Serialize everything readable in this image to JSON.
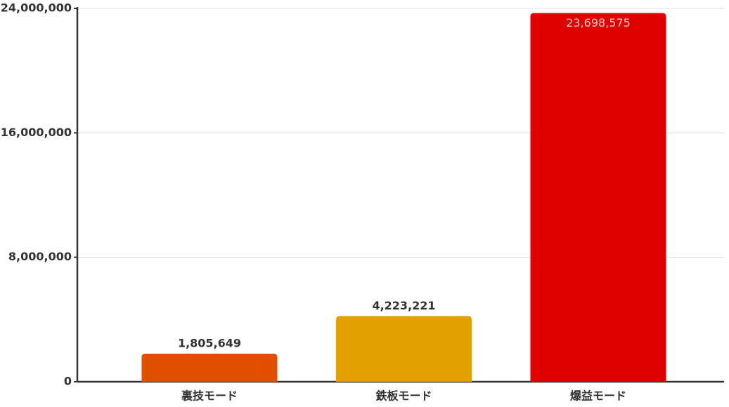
{
  "chart_data": {
    "type": "bar",
    "categories": [
      "裏技モード",
      "鉄板モード",
      "爆益モード"
    ],
    "values": [
      1805649,
      4223221,
      23698575
    ],
    "value_labels": [
      "1,805,649",
      "4,223,221",
      "23,698,575"
    ],
    "colors": [
      "#e04e00",
      "#e0a000",
      "#e00000"
    ],
    "ylim": [
      0,
      24000000
    ],
    "yticks": [
      0,
      {
        "value": 8000000,
        "label": "8,000,000"
      },
      {
        "value": 16000000,
        "label": "16,000,000"
      },
      {
        "value": 24000000,
        "label": "24,000,000"
      }
    ],
    "grid": true
  }
}
